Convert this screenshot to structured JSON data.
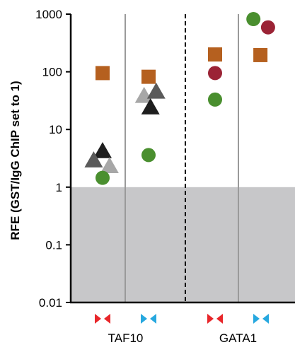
{
  "chart_data": {
    "type": "scatter",
    "ylabel": "RFE (GST/IgG ChIP set to 1)",
    "yscale": "log",
    "ylim": [
      0.01,
      1000
    ],
    "yticks": [
      "1000",
      "100",
      "10",
      "1",
      "0.1",
      "0.01"
    ],
    "shaded_below": 1,
    "groups": [
      "TAF10",
      "GATA1"
    ],
    "categories": [
      "TAF10-red",
      "TAF10-blue",
      "GATA1-red",
      "GATA1-blue"
    ],
    "category_colors": {
      "red": "#e8262a",
      "blue": "#27a8df"
    },
    "points": [
      {
        "category": 0,
        "offset": 0.0,
        "y": 95,
        "marker": "square",
        "color": "#b5601f"
      },
      {
        "category": 0,
        "offset": 0.0,
        "y": 4.2,
        "marker": "triangle",
        "color": "#1e1e1e"
      },
      {
        "category": 0,
        "offset": -0.7,
        "y": 2.9,
        "marker": "triangle",
        "color": "#5a5a5a"
      },
      {
        "category": 0,
        "offset": 0.55,
        "y": 2.3,
        "marker": "triangle",
        "color": "#a7a7a7"
      },
      {
        "category": 0,
        "offset": 0.0,
        "y": 1.45,
        "marker": "circle",
        "color": "#4a8f2f"
      },
      {
        "category": 1,
        "offset": 0.0,
        "y": 82,
        "marker": "square",
        "color": "#b5601f"
      },
      {
        "category": 1,
        "offset": -0.35,
        "y": 38,
        "marker": "triangle",
        "color": "#a7a7a7"
      },
      {
        "category": 1,
        "offset": 0.6,
        "y": 45,
        "marker": "triangle",
        "color": "#5a5a5a"
      },
      {
        "category": 1,
        "offset": 0.15,
        "y": 24,
        "marker": "triangle",
        "color": "#1e1e1e"
      },
      {
        "category": 1,
        "offset": 0.0,
        "y": 3.6,
        "marker": "circle",
        "color": "#4a8f2f"
      },
      {
        "category": 2,
        "offset": 0.0,
        "y": 200,
        "marker": "square",
        "color": "#b5601f"
      },
      {
        "category": 2,
        "offset": 0.0,
        "y": 95,
        "marker": "circle",
        "color": "#9b2335"
      },
      {
        "category": 2,
        "offset": 0.0,
        "y": 33,
        "marker": "circle",
        "color": "#4a8f2f"
      },
      {
        "category": 3,
        "offset": -0.6,
        "y": 820,
        "marker": "circle",
        "color": "#4a8f2f"
      },
      {
        "category": 3,
        "offset": 0.55,
        "y": 590,
        "marker": "circle",
        "color": "#9b2335"
      },
      {
        "category": 3,
        "offset": -0.05,
        "y": 195,
        "marker": "square",
        "color": "#b5601f"
      }
    ]
  }
}
